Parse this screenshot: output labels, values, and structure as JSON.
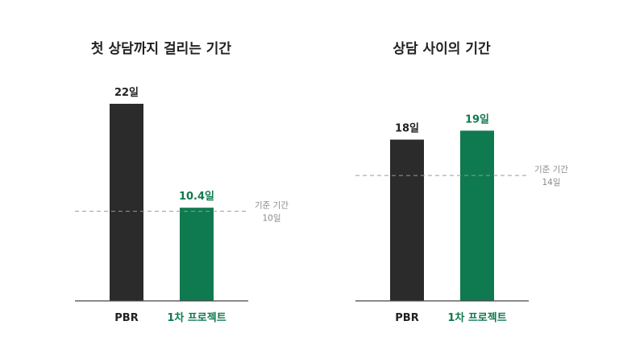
{
  "colors": {
    "pbr": "#2b2b2b",
    "project": "#0f7a4f",
    "reference_line": "#9a9a9a",
    "axis": "#444444",
    "text": "#222222",
    "muted": "#8a8a8a"
  },
  "chart_data": [
    {
      "type": "bar",
      "title": "첫 상담까지 걸리는 기간",
      "categories": [
        "PBR",
        "1차 프로젝트"
      ],
      "values": [
        22,
        10.4
      ],
      "value_labels": [
        "22일",
        "10.4일"
      ],
      "bar_color_keys": [
        "pbr",
        "project"
      ],
      "reference": {
        "value": 10,
        "label_line1": "기준 기간",
        "label_line2": "10일"
      },
      "ylim": [
        0,
        24
      ],
      "grid": false
    },
    {
      "type": "bar",
      "title": "상담 사이의 기간",
      "categories": [
        "PBR",
        "1차 프로젝트"
      ],
      "values": [
        18,
        19
      ],
      "value_labels": [
        "18일",
        "19일"
      ],
      "bar_color_keys": [
        "pbr",
        "project"
      ],
      "reference": {
        "value": 14,
        "label_line1": "기준 기간",
        "label_line2": "14일"
      },
      "ylim": [
        0,
        24
      ],
      "grid": false
    }
  ]
}
